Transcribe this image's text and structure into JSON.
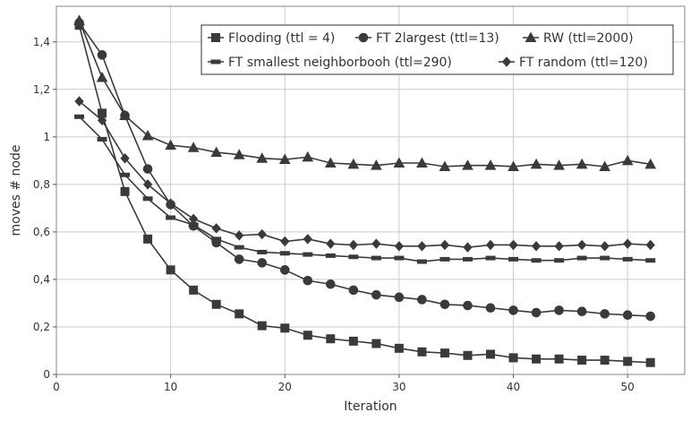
{
  "chart_data": {
    "type": "line",
    "title": "",
    "xlabel": "Iteration",
    "ylabel": "moves # node",
    "xlim": [
      0,
      55
    ],
    "ylim": [
      0,
      1.55
    ],
    "x_ticks": [
      0,
      10,
      20,
      30,
      40,
      50
    ],
    "x_tick_labels": [
      "0",
      "10",
      "20",
      "30",
      "40",
      "50"
    ],
    "y_ticks": [
      0,
      0.2,
      0.4,
      0.6,
      0.8,
      1,
      1.2,
      1.4
    ],
    "y_tick_labels": [
      "0",
      "0,2",
      "0,4",
      "0,6",
      "0,8",
      "1",
      "1,2",
      "1,4"
    ],
    "grid": true,
    "legend_position": "top-right",
    "x": [
      2,
      4,
      6,
      8,
      10,
      12,
      14,
      16,
      18,
      20,
      22,
      24,
      26,
      28,
      30,
      32,
      34,
      36,
      38,
      40,
      42,
      44,
      46,
      48,
      50,
      52
    ],
    "series": [
      {
        "name": "Flooding (ttl = 4)",
        "marker": "square",
        "values": [
          1.47,
          1.1,
          0.77,
          0.57,
          0.44,
          0.355,
          0.295,
          0.255,
          0.205,
          0.195,
          0.165,
          0.15,
          0.14,
          0.13,
          0.11,
          0.095,
          0.09,
          0.08,
          0.085,
          0.07,
          0.065,
          0.065,
          0.06,
          0.06,
          0.055,
          0.05
        ]
      },
      {
        "name": "FT 2largest (ttl=13)",
        "marker": "circle",
        "values": [
          1.48,
          1.345,
          1.09,
          0.865,
          0.715,
          0.625,
          0.555,
          0.485,
          0.47,
          0.44,
          0.395,
          0.38,
          0.355,
          0.335,
          0.325,
          0.315,
          0.295,
          0.29,
          0.28,
          0.27,
          0.26,
          0.27,
          0.265,
          0.255,
          0.25,
          0.245
        ]
      },
      {
        "name": "RW (ttl=2000)",
        "marker": "triangle",
        "values": [
          1.49,
          1.25,
          1.09,
          1.005,
          0.965,
          0.955,
          0.935,
          0.925,
          0.91,
          0.905,
          0.915,
          0.89,
          0.885,
          0.88,
          0.89,
          0.89,
          0.875,
          0.88,
          0.88,
          0.875,
          0.885,
          0.88,
          0.885,
          0.875,
          0.9,
          0.885
        ]
      },
      {
        "name": "FT smallest neighborbooh (ttl=290)",
        "marker": "dash",
        "values": [
          1.085,
          0.99,
          0.84,
          0.74,
          0.66,
          0.63,
          0.57,
          0.535,
          0.515,
          0.51,
          0.505,
          0.5,
          0.495,
          0.49,
          0.49,
          0.475,
          0.485,
          0.485,
          0.49,
          0.485,
          0.48,
          0.48,
          0.49,
          0.49,
          0.485,
          0.48
        ]
      },
      {
        "name": "FT random (ttl=120)",
        "marker": "diamond",
        "values": [
          1.15,
          1.07,
          0.91,
          0.8,
          0.72,
          0.655,
          0.615,
          0.585,
          0.59,
          0.56,
          0.57,
          0.55,
          0.545,
          0.55,
          0.54,
          0.54,
          0.545,
          0.535,
          0.545,
          0.545,
          0.54,
          0.54,
          0.545,
          0.54,
          0.55,
          0.545
        ]
      }
    ]
  }
}
